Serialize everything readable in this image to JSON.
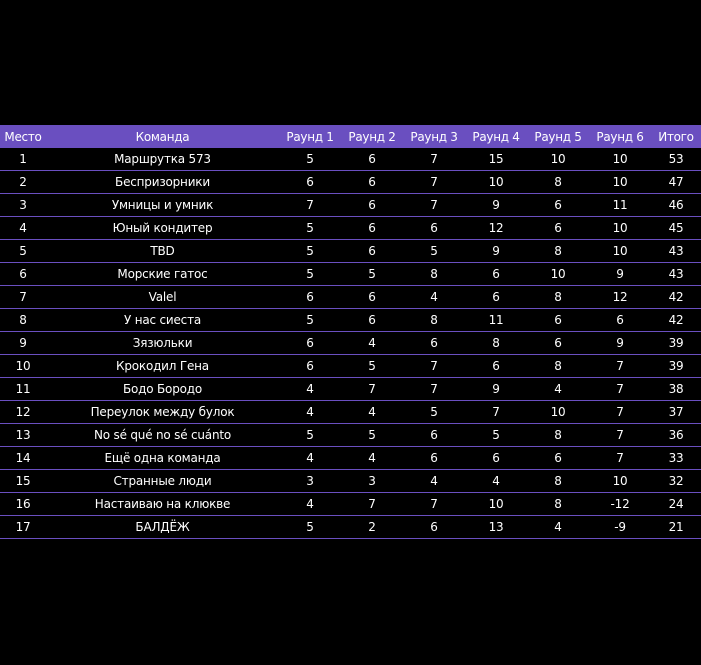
{
  "table": {
    "headers": [
      "Место",
      "Команда",
      "Раунд 1",
      "Раунд 2",
      "Раунд 3",
      "Раунд 4",
      "Раунд 5",
      "Раунд 6",
      "Итого"
    ],
    "rows": [
      [
        "1",
        "Маршрутка 573",
        "5",
        "6",
        "7",
        "15",
        "10",
        "10",
        "53"
      ],
      [
        "2",
        "Беспризорники",
        "6",
        "6",
        "7",
        "10",
        "8",
        "10",
        "47"
      ],
      [
        "3",
        "Умницы и умник",
        "7",
        "6",
        "7",
        "9",
        "6",
        "11",
        "46"
      ],
      [
        "4",
        "Юный кондитер",
        "5",
        "6",
        "6",
        "12",
        "6",
        "10",
        "45"
      ],
      [
        "5",
        "TBD",
        "5",
        "6",
        "5",
        "9",
        "8",
        "10",
        "43"
      ],
      [
        "6",
        "Морские гатос",
        "5",
        "5",
        "8",
        "6",
        "10",
        "9",
        "43"
      ],
      [
        "7",
        "Valel",
        "6",
        "6",
        "4",
        "6",
        "8",
        "12",
        "42"
      ],
      [
        "8",
        "У нас сиеста",
        "5",
        "6",
        "8",
        "11",
        "6",
        "6",
        "42"
      ],
      [
        "9",
        "Зязюльки",
        "6",
        "4",
        "6",
        "8",
        "6",
        "9",
        "39"
      ],
      [
        "10",
        "Крокодил Гена",
        "6",
        "5",
        "7",
        "6",
        "8",
        "7",
        "39"
      ],
      [
        "11",
        "Бодо Бородо",
        "4",
        "7",
        "7",
        "9",
        "4",
        "7",
        "38"
      ],
      [
        "12",
        "Переулок между булок",
        "4",
        "4",
        "5",
        "7",
        "10",
        "7",
        "37"
      ],
      [
        "13",
        "No sé qué no sé cuánto",
        "5",
        "5",
        "6",
        "5",
        "8",
        "7",
        "36"
      ],
      [
        "14",
        "Ещё одна команда",
        "4",
        "4",
        "6",
        "6",
        "6",
        "7",
        "33"
      ],
      [
        "15",
        "Странные люди",
        "3",
        "3",
        "4",
        "4",
        "8",
        "10",
        "32"
      ],
      [
        "16",
        "Настаиваю на клюкве",
        "4",
        "7",
        "7",
        "10",
        "8",
        "-12",
        "24"
      ],
      [
        "17",
        "БАЛДЁЖ",
        "5",
        "2",
        "6",
        "13",
        "4",
        "-9",
        "21"
      ]
    ]
  },
  "colors": {
    "background": "#000000",
    "header_bg": "#6a4fc0",
    "row_divider": "#6a4fc0",
    "text": "#ffffff"
  }
}
